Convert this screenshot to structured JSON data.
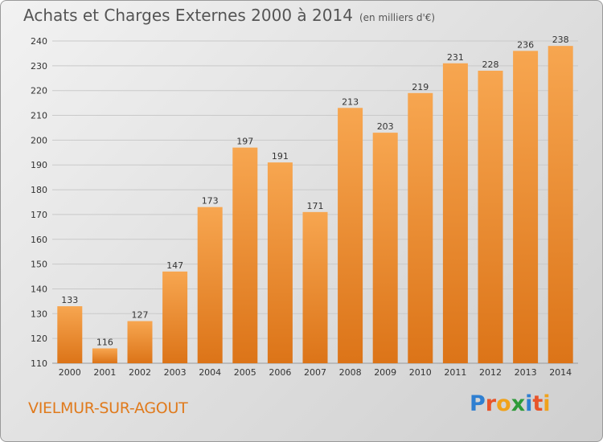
{
  "title": "Achats et Charges Externes 2000 à 2014",
  "subtitle": "(en milliers d'€)",
  "commune": "VIELMUR-SUR-AGOUT",
  "logo": {
    "text": "Proxiti",
    "letters": [
      {
        "ch": "P",
        "color": "#2f7fd1"
      },
      {
        "ch": "r",
        "color": "#e8542a"
      },
      {
        "ch": "o",
        "color": "#f0a21b"
      },
      {
        "ch": "x",
        "color": "#2e9b3a"
      },
      {
        "ch": "i",
        "color": "#2f7fd1"
      },
      {
        "ch": "t",
        "color": "#e8542a"
      },
      {
        "ch": "i",
        "color": "#f0a21b"
      }
    ]
  },
  "colors": {
    "bar_light": "#f7a650",
    "bar_dark": "#dc7418",
    "grid": "#c9c9c9",
    "axis_text": "#333333"
  },
  "chart_data": {
    "type": "bar",
    "categories": [
      "2000",
      "2001",
      "2002",
      "2003",
      "2004",
      "2005",
      "2006",
      "2007",
      "2008",
      "2009",
      "2010",
      "2011",
      "2012",
      "2013",
      "2014"
    ],
    "values": [
      133,
      116,
      127,
      147,
      173,
      197,
      191,
      171,
      213,
      203,
      219,
      231,
      228,
      236,
      238
    ],
    "ylim": [
      110,
      240
    ],
    "yticks": [
      110,
      120,
      130,
      140,
      150,
      160,
      170,
      180,
      190,
      200,
      210,
      220,
      230,
      240
    ],
    "grid": true
  }
}
